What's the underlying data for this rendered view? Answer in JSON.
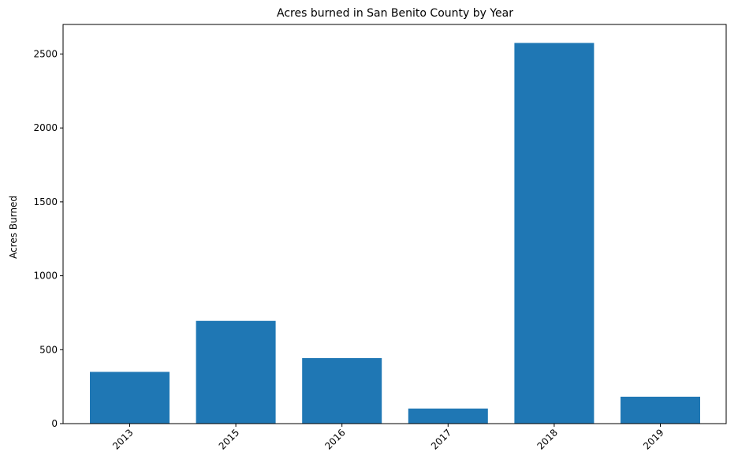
{
  "chart_data": {
    "type": "bar",
    "title": "Acres burned in San Benito County by Year",
    "xlabel": "",
    "ylabel": "Acres Burned",
    "categories": [
      "2013",
      "2015",
      "2016",
      "2017",
      "2018",
      "2019"
    ],
    "values": [
      350,
      695,
      443,
      102,
      2575,
      182
    ],
    "ylim": [
      0,
      2700
    ],
    "yticks": [
      0,
      500,
      1000,
      1500,
      2000,
      2500
    ],
    "bar_color": "#1f77b4",
    "grid": false,
    "legend": "none"
  }
}
